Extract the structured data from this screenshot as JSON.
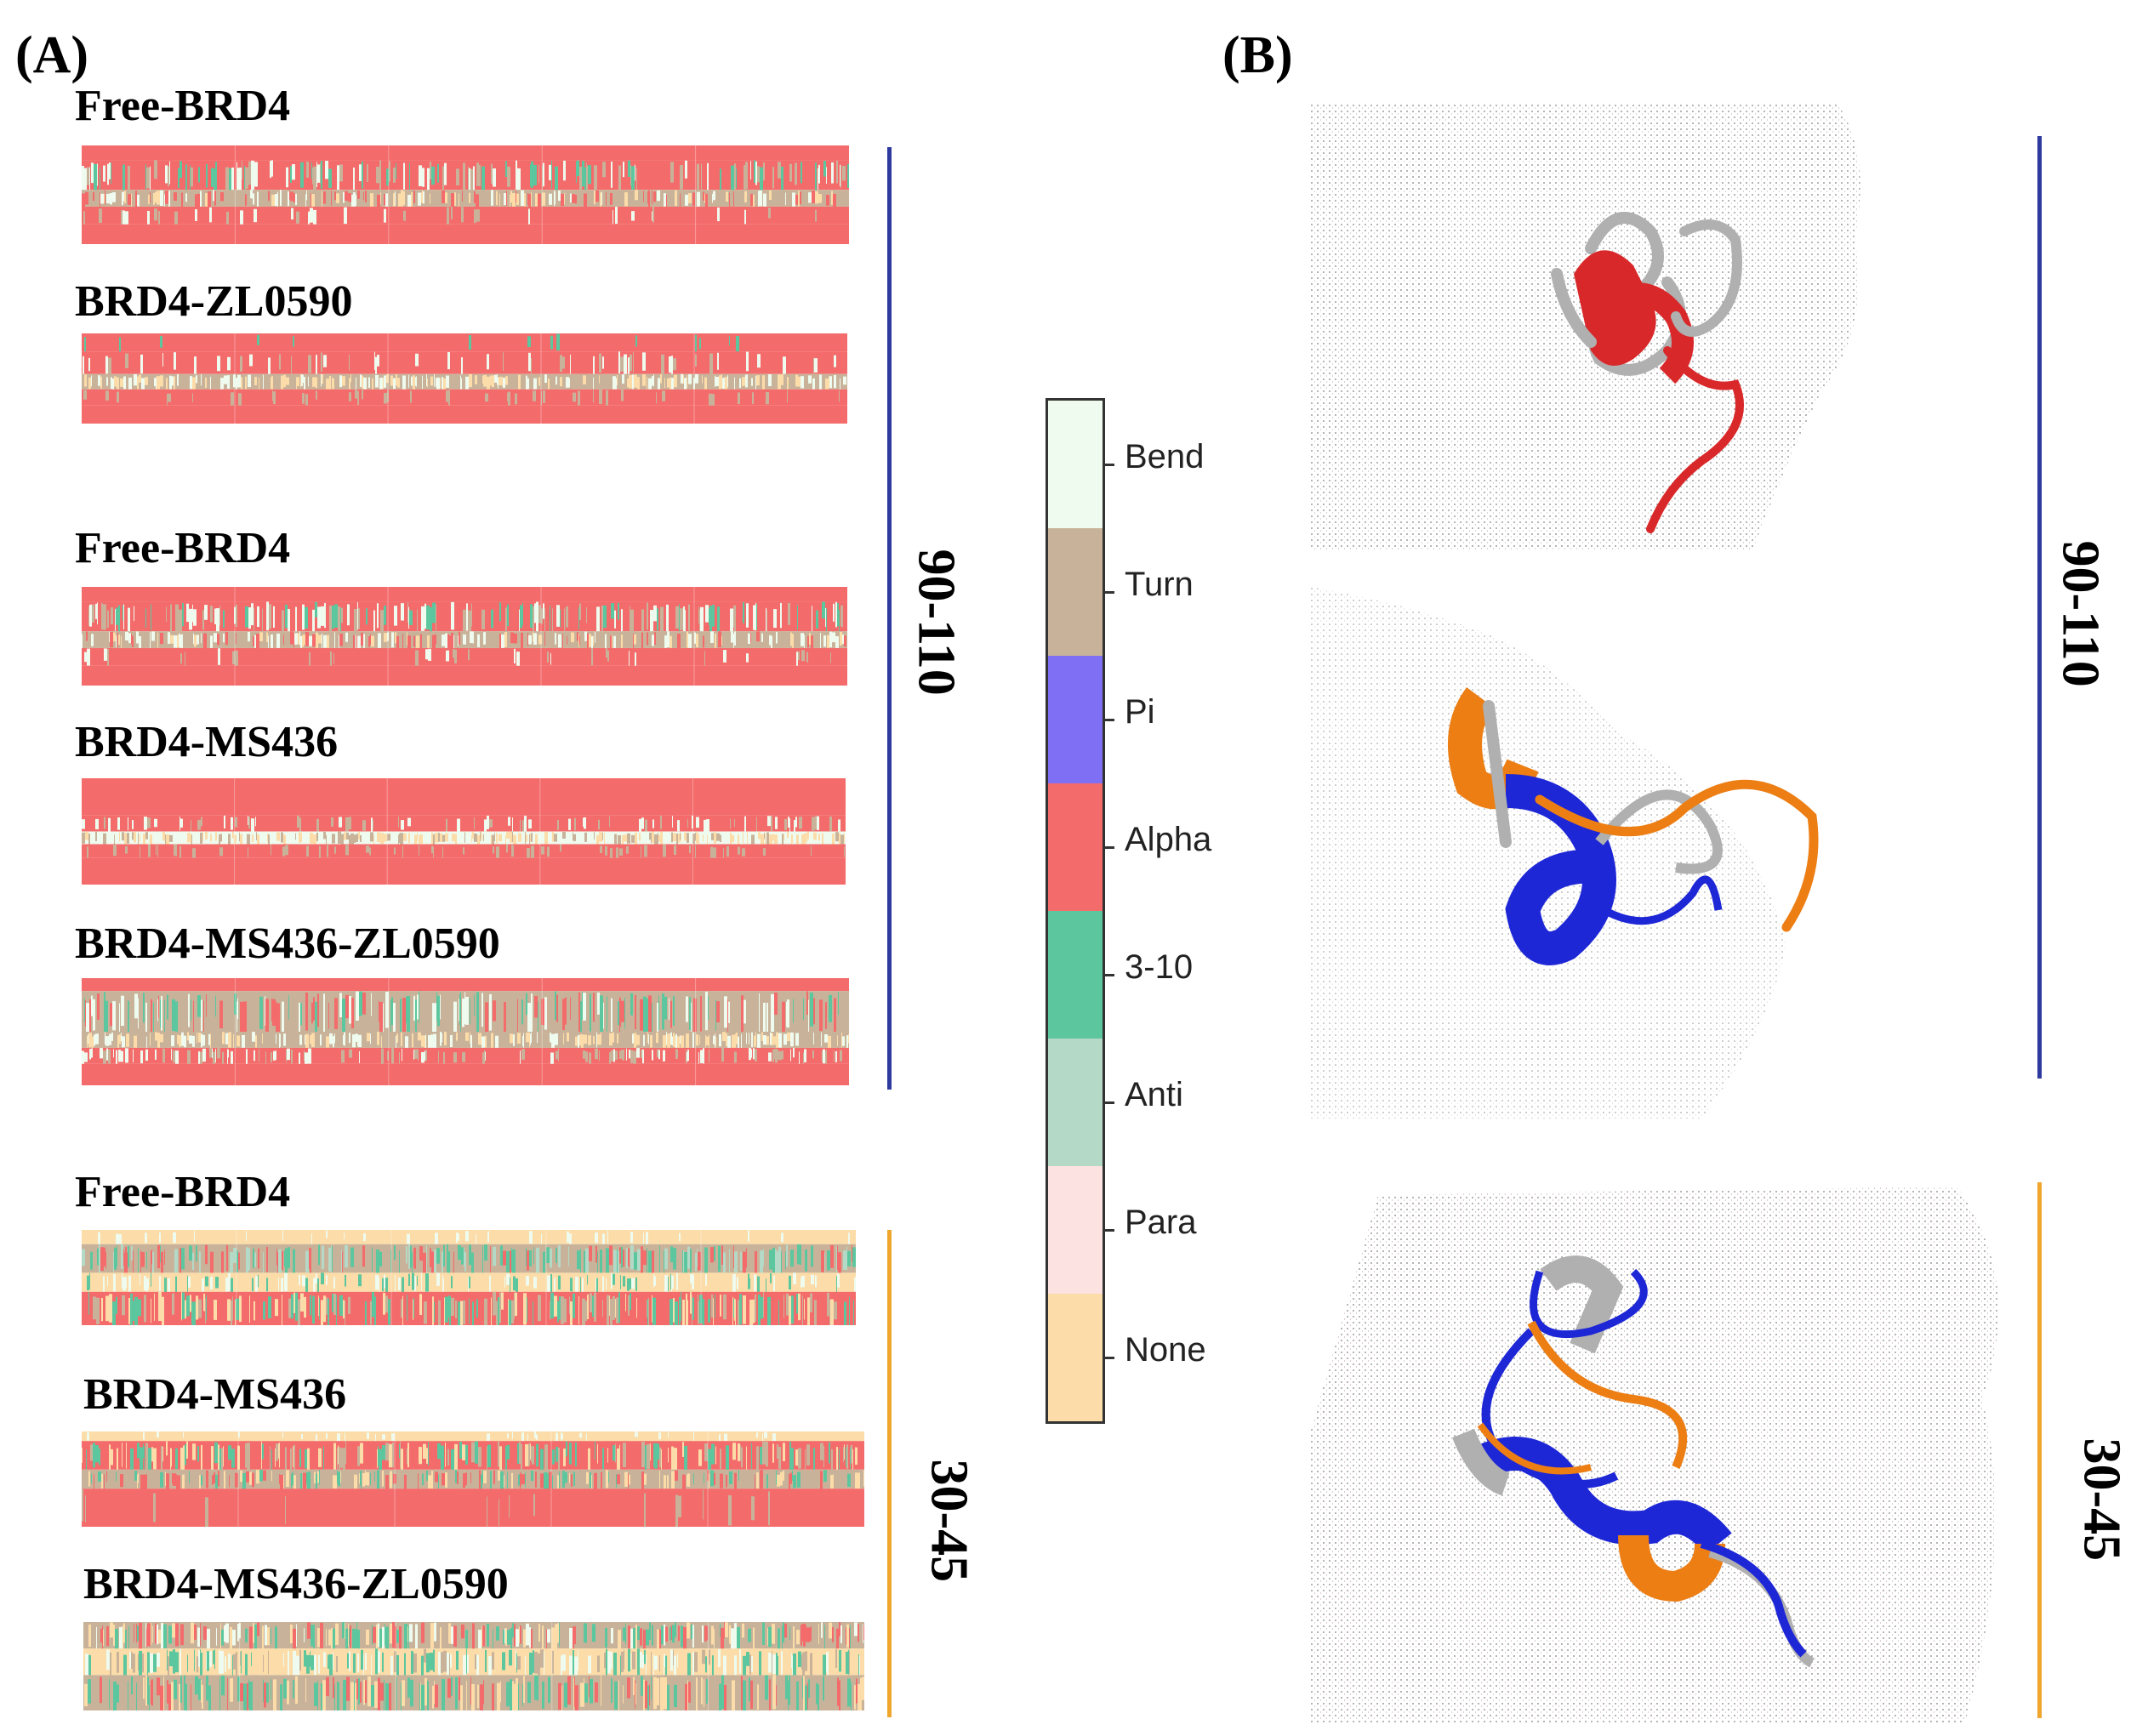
{
  "panels": {
    "a": "(A)",
    "b": "(B)"
  },
  "rows": [
    {
      "title": "Free-BRD4"
    },
    {
      "title": "BRD4-ZL0590"
    },
    {
      "title": "Free-BRD4"
    },
    {
      "title": "BRD4-MS436"
    },
    {
      "title": "BRD4-MS436-ZL0590"
    },
    {
      "title": "Free-BRD4"
    },
    {
      "title": "BRD4-MS436"
    },
    {
      "title": "BRD4-MS436-ZL0590"
    }
  ],
  "ranges": {
    "top": "90-110",
    "bottom": "30-45"
  },
  "legend": [
    {
      "label": "Bend",
      "color": "#eefbee"
    },
    {
      "label": "Turn",
      "color": "#c8b39a"
    },
    {
      "label": "Pi",
      "color": "#7f6ff5"
    },
    {
      "label": "Alpha",
      "color": "#f46b6b"
    },
    {
      "label": "3-10",
      "color": "#5cc79e"
    },
    {
      "label": "Anti",
      "color": "#b4d9c6"
    },
    {
      "label": "Para",
      "color": "#fce2e0"
    },
    {
      "label": "None",
      "color": "#fcdca8"
    }
  ],
  "colors": {
    "blue_line": "#2e3a9e",
    "orange_line": "#f0a52c",
    "red_helix": "#d9282a",
    "blue_helix": "#1e27d6",
    "orange_helix": "#ec7e14",
    "grey_helix": "#b0b0b0"
  }
}
